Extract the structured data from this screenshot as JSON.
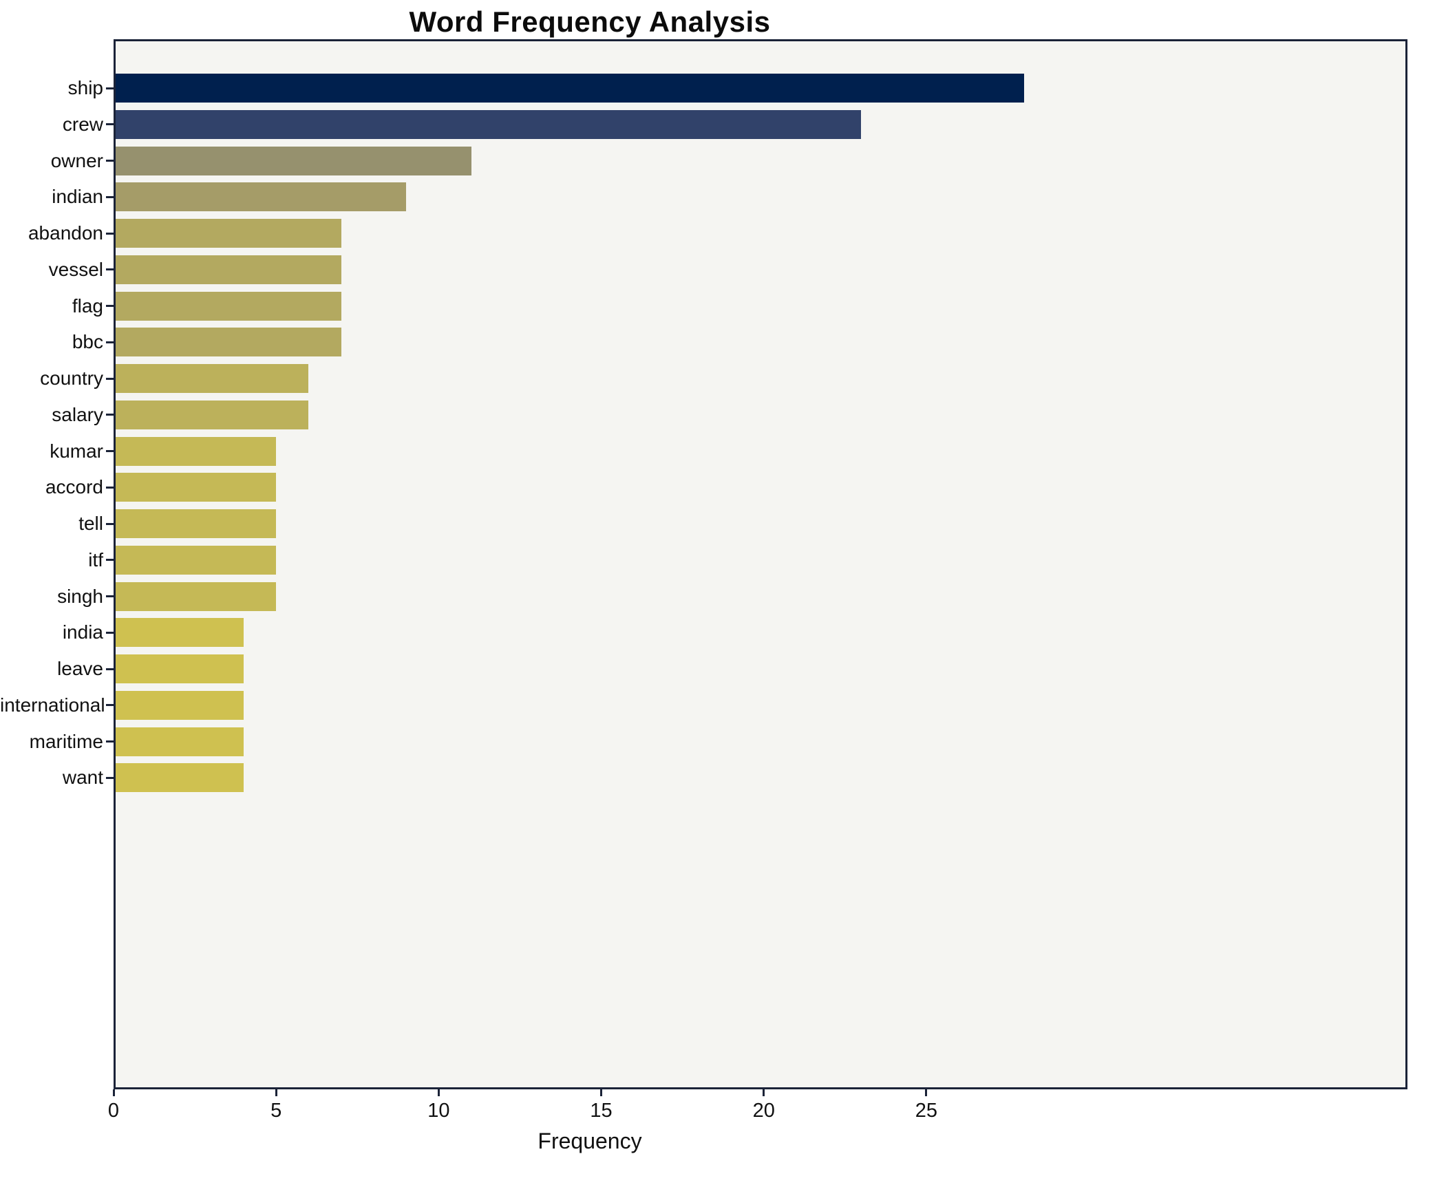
{
  "chart_data": {
    "type": "bar",
    "orientation": "horizontal",
    "title": "Word Frequency Analysis",
    "xlabel": "Frequency",
    "ylabel": "",
    "categories": [
      "ship",
      "crew",
      "owner",
      "indian",
      "abandon",
      "vessel",
      "flag",
      "bbc",
      "country",
      "salary",
      "kumar",
      "accord",
      "tell",
      "itf",
      "singh",
      "india",
      "leave",
      "international",
      "maritime",
      "want"
    ],
    "values": [
      28,
      23,
      11,
      9,
      7,
      7,
      7,
      7,
      6,
      6,
      5,
      5,
      5,
      5,
      5,
      4,
      4,
      4,
      4,
      4
    ],
    "bar_colors": [
      "#00204e",
      "#31426a",
      "#96916e",
      "#a59c68",
      "#b3a960",
      "#b3a960",
      "#b3a960",
      "#b3a960",
      "#bcb15b",
      "#bcb15b",
      "#c5b956",
      "#c5b956",
      "#c5b956",
      "#c5b956",
      "#c5b956",
      "#cfc150",
      "#cfc150",
      "#cfc150",
      "#cfc150",
      "#cfc150"
    ],
    "xticks": [
      0,
      5,
      10,
      15,
      20,
      25
    ],
    "xlim": [
      0,
      39.8
    ],
    "grid": false,
    "legend_position": "none",
    "plot_bg": "#f5f5f2",
    "frame_color": "#1b2338",
    "text_color": "#111111"
  }
}
